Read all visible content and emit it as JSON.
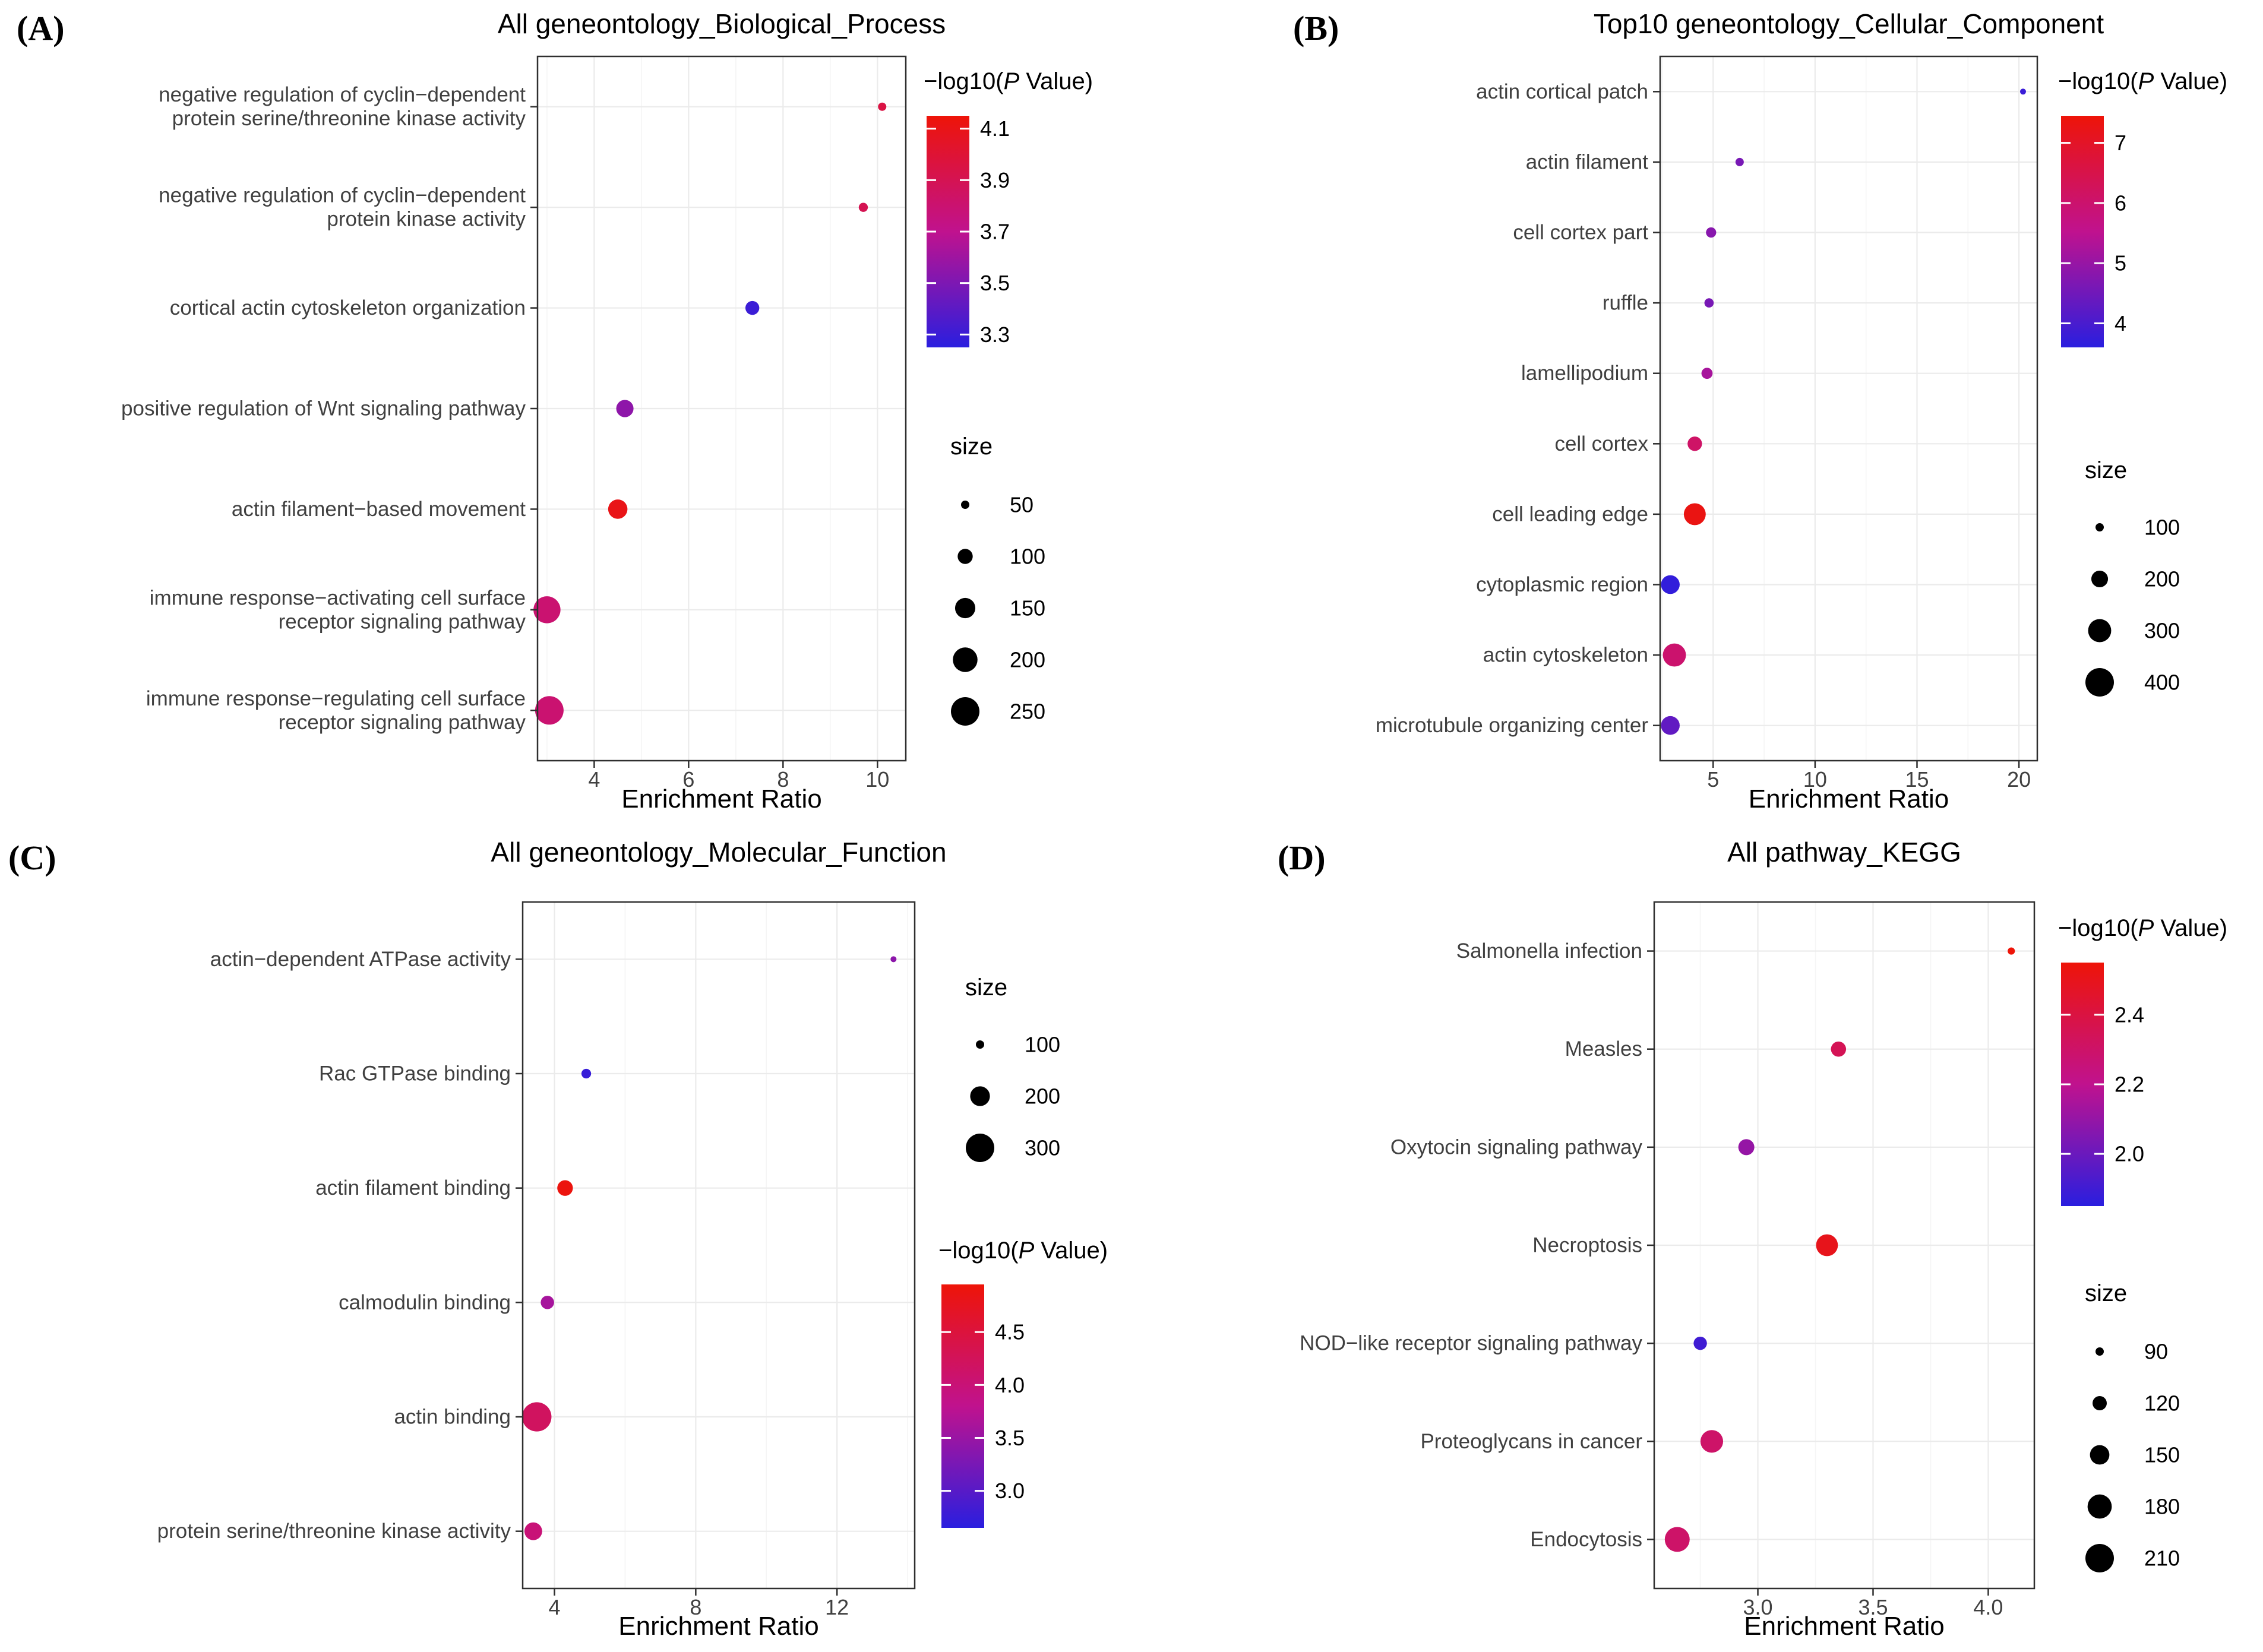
{
  "colors": {
    "background": "#ffffff",
    "scale_low": "#2A1EDF",
    "scale_mid": "#C0128E",
    "scale_high": "#EE1408",
    "legend_dot": "#000000",
    "grid_major": "#EBEBEB",
    "grid_minor": "#F5F5F5",
    "panel_border": "#2F2F2F",
    "axis_text": "#404040",
    "title_text": "#000000"
  },
  "chart_data": [
    {
      "id": "A",
      "panel_label": "(A)",
      "type": "scatter",
      "title": "All geneontology_Biological_Process",
      "xlabel": "Enrichment Ratio",
      "ylabel": "",
      "grid": true,
      "legend_position": "right",
      "legend_order": [
        "color",
        "size"
      ],
      "xlim": [
        2.8,
        10.6
      ],
      "xticks": [
        4,
        6,
        8,
        10
      ],
      "xtick_labels": [
        "4",
        "6",
        "8",
        "10"
      ],
      "categories": [
        {
          "label": "negative regulation of cyclin−dependent protein serine/threonine kinase activity",
          "lines": [
            "negative regulation of cyclin−dependent",
            "protein serine/threonine kinase activity"
          ],
          "enrichment_ratio": 10.1,
          "size": 50,
          "neg_log10_p": 3.95
        },
        {
          "label": "negative regulation of cyclin−dependent protein kinase activity",
          "lines": [
            "negative regulation of cyclin−dependent",
            "protein kinase activity"
          ],
          "enrichment_ratio": 9.7,
          "size": 55,
          "neg_log10_p": 3.9
        },
        {
          "label": "cortical actin cytoskeleton organization",
          "lines": [
            "cortical actin cytoskeleton organization"
          ],
          "enrichment_ratio": 7.35,
          "size": 90,
          "neg_log10_p": 3.3
        },
        {
          "label": "positive regulation of Wnt signaling pathway",
          "lines": [
            "positive regulation of Wnt signaling pathway"
          ],
          "enrichment_ratio": 4.65,
          "size": 120,
          "neg_log10_p": 3.55
        },
        {
          "label": "actin filament−based movement",
          "lines": [
            "actin filament−based movement"
          ],
          "enrichment_ratio": 4.5,
          "size": 140,
          "neg_log10_p": 4.1
        },
        {
          "label": "immune response−activating cell surface receptor signaling pathway",
          "lines": [
            "immune response−activating cell surface",
            "receptor signaling pathway"
          ],
          "enrichment_ratio": 3.0,
          "size": 230,
          "neg_log10_p": 3.8
        },
        {
          "label": "immune response−regulating cell surface receptor signaling pathway",
          "lines": [
            "immune response−regulating cell surface",
            "receptor signaling pathway"
          ],
          "enrichment_ratio": 3.05,
          "size": 250,
          "neg_log10_p": 3.8
        }
      ],
      "color_legend": {
        "title_prefix": "−log10(",
        "title_italic": "P",
        "title_suffix": " Value)",
        "domain": [
          3.25,
          4.15
        ],
        "ticks": [
          4.1,
          3.9,
          3.7,
          3.5,
          3.3
        ],
        "tick_labels": [
          "4.1",
          "3.9",
          "3.7",
          "3.5",
          "3.3"
        ]
      },
      "size_legend": {
        "title": "size",
        "values": [
          50,
          100,
          150,
          200,
          250
        ],
        "labels": [
          "50",
          "100",
          "150",
          "200",
          "250"
        ]
      }
    },
    {
      "id": "B",
      "panel_label": "(B)",
      "type": "scatter",
      "title": "Top10 geneontology_Cellular_Component",
      "xlabel": "Enrichment Ratio",
      "ylabel": "",
      "grid": true,
      "legend_position": "right",
      "legend_order": [
        "color",
        "size"
      ],
      "xlim": [
        2.4,
        20.9
      ],
      "xticks": [
        5,
        10,
        15,
        20
      ],
      "xtick_labels": [
        "5",
        "10",
        "15",
        "20"
      ],
      "categories": [
        {
          "label": "actin cortical patch",
          "lines": [
            "actin cortical patch"
          ],
          "enrichment_ratio": 20.2,
          "size": 60,
          "neg_log10_p": 3.8
        },
        {
          "label": "actin filament",
          "lines": [
            "actin filament"
          ],
          "enrichment_ratio": 6.3,
          "size": 100,
          "neg_log10_p": 4.6
        },
        {
          "label": "cell cortex part",
          "lines": [
            "cell cortex part"
          ],
          "enrichment_ratio": 4.9,
          "size": 120,
          "neg_log10_p": 4.8
        },
        {
          "label": "ruffle",
          "lines": [
            "ruffle"
          ],
          "enrichment_ratio": 4.8,
          "size": 110,
          "neg_log10_p": 4.6
        },
        {
          "label": "lamellipodium",
          "lines": [
            "lamellipodium"
          ],
          "enrichment_ratio": 4.7,
          "size": 130,
          "neg_log10_p": 5.2
        },
        {
          "label": "cell cortex",
          "lines": [
            "cell cortex"
          ],
          "enrichment_ratio": 4.1,
          "size": 170,
          "neg_log10_p": 6.1
        },
        {
          "label": "cell leading edge",
          "lines": [
            "cell leading edge"
          ],
          "enrichment_ratio": 4.1,
          "size": 280,
          "neg_log10_p": 7.3
        },
        {
          "label": "cytoplasmic region",
          "lines": [
            "cytoplasmic region"
          ],
          "enrichment_ratio": 2.9,
          "size": 230,
          "neg_log10_p": 3.7
        },
        {
          "label": "actin cytoskeleton",
          "lines": [
            "actin cytoskeleton"
          ],
          "enrichment_ratio": 3.1,
          "size": 300,
          "neg_log10_p": 6.0
        },
        {
          "label": "microtubule organizing center",
          "lines": [
            "microtubule organizing center"
          ],
          "enrichment_ratio": 2.9,
          "size": 230,
          "neg_log10_p": 4.3
        }
      ],
      "color_legend": {
        "title_prefix": "−log10(",
        "title_italic": "P",
        "title_suffix": " Value)",
        "domain": [
          3.6,
          7.45
        ],
        "ticks": [
          7,
          6,
          5,
          4
        ],
        "tick_labels": [
          "7",
          "6",
          "5",
          "4"
        ]
      },
      "size_legend": {
        "title": "size",
        "values": [
          100,
          200,
          300,
          400
        ],
        "labels": [
          "100",
          "200",
          "300",
          "400"
        ]
      }
    },
    {
      "id": "C",
      "panel_label": "(C)",
      "type": "scatter",
      "title": "All geneontology_Molecular_Function",
      "xlabel": "Enrichment Ratio",
      "ylabel": "",
      "grid": true,
      "legend_position": "right",
      "legend_order": [
        "size",
        "color"
      ],
      "xlim": [
        3.1,
        14.2
      ],
      "xticks": [
        4,
        8,
        12
      ],
      "xtick_labels": [
        "4",
        "8",
        "12"
      ],
      "categories": [
        {
          "label": "actin−dependent ATPase activity",
          "lines": [
            "actin−dependent ATPase activity"
          ],
          "enrichment_ratio": 13.6,
          "size": 40,
          "neg_log10_p": 3.4
        },
        {
          "label": "Rac GTPase binding",
          "lines": [
            "Rac GTPase binding"
          ],
          "enrichment_ratio": 4.9,
          "size": 110,
          "neg_log10_p": 2.75
        },
        {
          "label": "actin filament binding",
          "lines": [
            "actin filament binding"
          ],
          "enrichment_ratio": 4.3,
          "size": 160,
          "neg_log10_p": 4.9
        },
        {
          "label": "calmodulin binding",
          "lines": [
            "calmodulin binding"
          ],
          "enrichment_ratio": 3.8,
          "size": 140,
          "neg_log10_p": 3.6
        },
        {
          "label": "actin binding",
          "lines": [
            "actin binding"
          ],
          "enrichment_ratio": 3.5,
          "size": 310,
          "neg_log10_p": 4.2
        },
        {
          "label": "protein serine/threonine kinase activity",
          "lines": [
            "protein serine/threonine kinase activity"
          ],
          "enrichment_ratio": 3.4,
          "size": 180,
          "neg_log10_p": 4.0
        }
      ],
      "color_legend": {
        "title_prefix": "−log10(",
        "title_italic": "P",
        "title_suffix": " Value)",
        "domain": [
          2.65,
          4.95
        ],
        "ticks": [
          4.5,
          4.0,
          3.5,
          3.0
        ],
        "tick_labels": [
          "4.5",
          "4.0",
          "3.5",
          "3.0"
        ]
      },
      "size_legend": {
        "title": "size",
        "values": [
          100,
          200,
          300
        ],
        "labels": [
          "100",
          "200",
          "300"
        ]
      }
    },
    {
      "id": "D",
      "panel_label": "(D)",
      "type": "scatter",
      "title": "All pathway_KEGG",
      "xlabel": "Enrichment Ratio",
      "ylabel": "",
      "grid": true,
      "legend_position": "right",
      "legend_order": [
        "color",
        "size"
      ],
      "xlim": [
        2.55,
        4.2
      ],
      "xticks": [
        3.0,
        3.5,
        4.0
      ],
      "xtick_labels": [
        "3.0",
        "3.5",
        "4.0"
      ],
      "categories": [
        {
          "label": "Salmonella infection",
          "lines": [
            "Salmonella infection"
          ],
          "enrichment_ratio": 4.1,
          "size": 85,
          "neg_log10_p": 2.55
        },
        {
          "label": "Measles",
          "lines": [
            "Measles"
          ],
          "enrichment_ratio": 3.35,
          "size": 125,
          "neg_log10_p": 2.35
        },
        {
          "label": "Oxytocin signaling pathway",
          "lines": [
            "Oxytocin signaling pathway"
          ],
          "enrichment_ratio": 2.95,
          "size": 130,
          "neg_log10_p": 2.1
        },
        {
          "label": "Necroptosis",
          "lines": [
            "Necroptosis"
          ],
          "enrichment_ratio": 3.3,
          "size": 165,
          "neg_log10_p": 2.5
        },
        {
          "label": "NOD−like receptor signaling pathway",
          "lines": [
            "NOD−like receptor signaling pathway"
          ],
          "enrichment_ratio": 2.75,
          "size": 115,
          "neg_log10_p": 1.9
        },
        {
          "label": "Proteoglycans in cancer",
          "lines": [
            "Proteoglycans in cancer"
          ],
          "enrichment_ratio": 2.8,
          "size": 170,
          "neg_log10_p": 2.3
        },
        {
          "label": "Endocytosis",
          "lines": [
            "Endocytosis"
          ],
          "enrichment_ratio": 2.65,
          "size": 185,
          "neg_log10_p": 2.3
        }
      ],
      "color_legend": {
        "title_prefix": "−log10(",
        "title_italic": "P",
        "title_suffix": " Value)",
        "domain": [
          1.85,
          2.55
        ],
        "ticks": [
          2.4,
          2.2,
          2.0
        ],
        "tick_labels": [
          "2.4",
          "2.2",
          "2.0"
        ]
      },
      "size_legend": {
        "title": "size",
        "values": [
          90,
          120,
          150,
          180,
          210
        ],
        "labels": [
          "90",
          "120",
          "150",
          "180",
          "210"
        ]
      }
    }
  ]
}
